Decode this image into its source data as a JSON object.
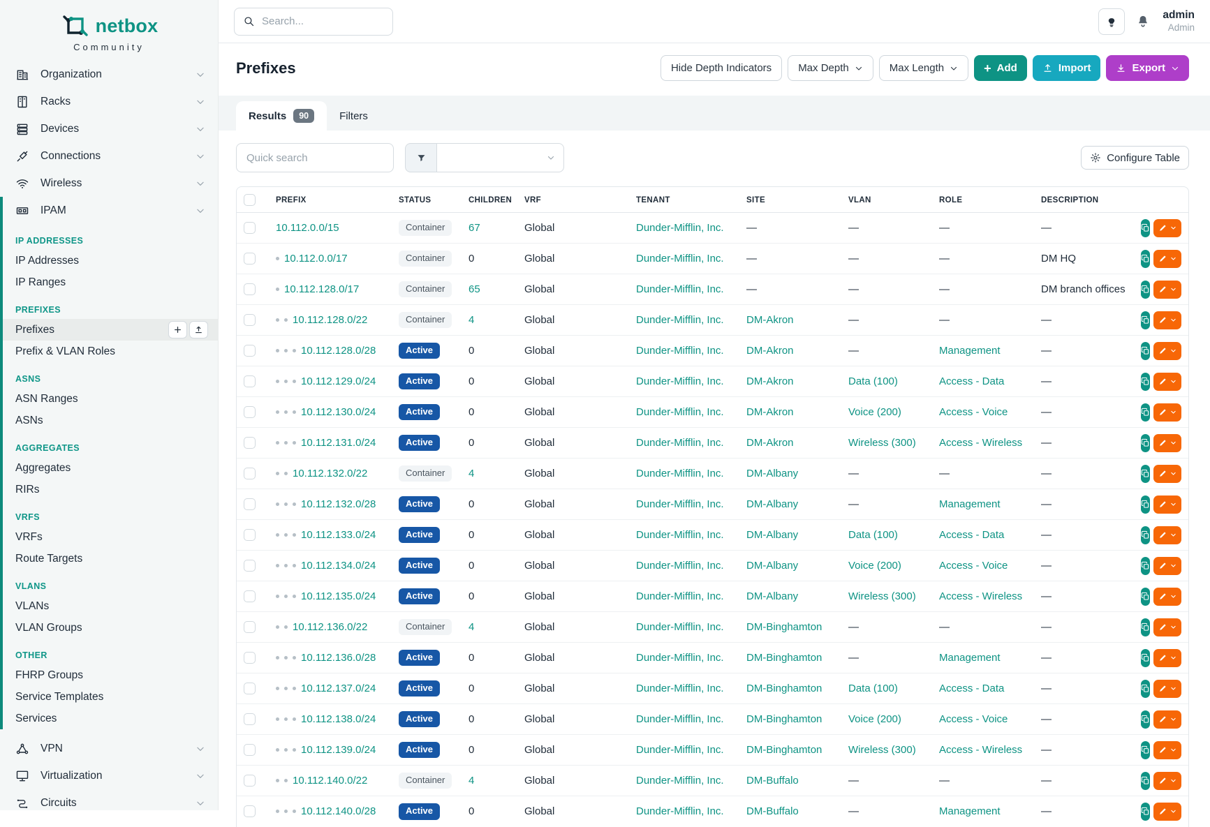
{
  "brand": {
    "name": "netbox",
    "subtitle": "Community"
  },
  "sidebar": {
    "top_items": [
      {
        "label": "Organization",
        "icon": "building-icon"
      },
      {
        "label": "Racks",
        "icon": "rack-icon"
      },
      {
        "label": "Devices",
        "icon": "server-icon"
      },
      {
        "label": "Connections",
        "icon": "plug-icon"
      },
      {
        "label": "Wireless",
        "icon": "wifi-icon"
      }
    ],
    "ipam": {
      "label": "IPAM",
      "icon": "grid-icon",
      "sections": [
        {
          "title": "IP ADDRESSES",
          "items": [
            {
              "label": "IP Addresses"
            },
            {
              "label": "IP Ranges"
            }
          ]
        },
        {
          "title": "PREFIXES",
          "items": [
            {
              "label": "Prefixes",
              "active": true,
              "actions": [
                "add",
                "import"
              ]
            },
            {
              "label": "Prefix & VLAN Roles"
            }
          ]
        },
        {
          "title": "ASNS",
          "items": [
            {
              "label": "ASN Ranges"
            },
            {
              "label": "ASNs"
            }
          ]
        },
        {
          "title": "AGGREGATES",
          "items": [
            {
              "label": "Aggregates"
            },
            {
              "label": "RIRs"
            }
          ]
        },
        {
          "title": "VRFS",
          "items": [
            {
              "label": "VRFs"
            },
            {
              "label": "Route Targets"
            }
          ]
        },
        {
          "title": "VLANS",
          "items": [
            {
              "label": "VLANs"
            },
            {
              "label": "VLAN Groups"
            }
          ]
        },
        {
          "title": "OTHER",
          "items": [
            {
              "label": "FHRP Groups"
            },
            {
              "label": "Service Templates"
            },
            {
              "label": "Services"
            }
          ]
        }
      ]
    },
    "bottom_items": [
      {
        "label": "VPN",
        "icon": "vpn-icon"
      },
      {
        "label": "Virtualization",
        "icon": "monitor-icon"
      },
      {
        "label": "Circuits",
        "icon": "circuit-icon"
      }
    ]
  },
  "topbar": {
    "search_placeholder": "Search...",
    "user": {
      "name": "admin",
      "role": "Admin"
    }
  },
  "page": {
    "title": "Prefixes",
    "actions": {
      "hide_depth": "Hide Depth Indicators",
      "max_depth": "Max Depth",
      "max_length": "Max Length",
      "add": "Add",
      "import": "Import",
      "export": "Export"
    },
    "tabs": [
      {
        "label": "Results",
        "badge": "90",
        "active": true
      },
      {
        "label": "Filters",
        "active": false
      }
    ],
    "toolbar": {
      "quick_search_placeholder": "Quick search",
      "configure_table": "Configure Table"
    }
  },
  "table": {
    "columns": [
      "PREFIX",
      "STATUS",
      "CHILDREN",
      "VRF",
      "TENANT",
      "SITE",
      "VLAN",
      "ROLE",
      "DESCRIPTION"
    ],
    "rows": [
      {
        "prefix": "10.112.0.0/15",
        "depth": 0,
        "status": "Container",
        "children": "67",
        "vrf": "Global",
        "tenant": "Dunder-Mifflin, Inc.",
        "site": "—",
        "vlan": "—",
        "role": "—",
        "description": "—"
      },
      {
        "prefix": "10.112.0.0/17",
        "depth": 1,
        "status": "Container",
        "children": "0",
        "vrf": "Global",
        "tenant": "Dunder-Mifflin, Inc.",
        "site": "—",
        "vlan": "—",
        "role": "—",
        "description": "DM HQ"
      },
      {
        "prefix": "10.112.128.0/17",
        "depth": 1,
        "status": "Container",
        "children": "65",
        "vrf": "Global",
        "tenant": "Dunder-Mifflin, Inc.",
        "site": "—",
        "vlan": "—",
        "role": "—",
        "description": "DM branch offices"
      },
      {
        "prefix": "10.112.128.0/22",
        "depth": 2,
        "status": "Container",
        "children": "4",
        "vrf": "Global",
        "tenant": "Dunder-Mifflin, Inc.",
        "site": "DM-Akron",
        "vlan": "—",
        "role": "—",
        "description": "—"
      },
      {
        "prefix": "10.112.128.0/28",
        "depth": 3,
        "status": "Active",
        "children": "0",
        "vrf": "Global",
        "tenant": "Dunder-Mifflin, Inc.",
        "site": "DM-Akron",
        "vlan": "—",
        "role": "Management",
        "description": "—"
      },
      {
        "prefix": "10.112.129.0/24",
        "depth": 3,
        "status": "Active",
        "children": "0",
        "vrf": "Global",
        "tenant": "Dunder-Mifflin, Inc.",
        "site": "DM-Akron",
        "vlan": "Data (100)",
        "role": "Access - Data",
        "description": "—"
      },
      {
        "prefix": "10.112.130.0/24",
        "depth": 3,
        "status": "Active",
        "children": "0",
        "vrf": "Global",
        "tenant": "Dunder-Mifflin, Inc.",
        "site": "DM-Akron",
        "vlan": "Voice (200)",
        "role": "Access - Voice",
        "description": "—"
      },
      {
        "prefix": "10.112.131.0/24",
        "depth": 3,
        "status": "Active",
        "children": "0",
        "vrf": "Global",
        "tenant": "Dunder-Mifflin, Inc.",
        "site": "DM-Akron",
        "vlan": "Wireless (300)",
        "role": "Access - Wireless",
        "description": "—"
      },
      {
        "prefix": "10.112.132.0/22",
        "depth": 2,
        "status": "Container",
        "children": "4",
        "vrf": "Global",
        "tenant": "Dunder-Mifflin, Inc.",
        "site": "DM-Albany",
        "vlan": "—",
        "role": "—",
        "description": "—"
      },
      {
        "prefix": "10.112.132.0/28",
        "depth": 3,
        "status": "Active",
        "children": "0",
        "vrf": "Global",
        "tenant": "Dunder-Mifflin, Inc.",
        "site": "DM-Albany",
        "vlan": "—",
        "role": "Management",
        "description": "—"
      },
      {
        "prefix": "10.112.133.0/24",
        "depth": 3,
        "status": "Active",
        "children": "0",
        "vrf": "Global",
        "tenant": "Dunder-Mifflin, Inc.",
        "site": "DM-Albany",
        "vlan": "Data (100)",
        "role": "Access - Data",
        "description": "—"
      },
      {
        "prefix": "10.112.134.0/24",
        "depth": 3,
        "status": "Active",
        "children": "0",
        "vrf": "Global",
        "tenant": "Dunder-Mifflin, Inc.",
        "site": "DM-Albany",
        "vlan": "Voice (200)",
        "role": "Access - Voice",
        "description": "—"
      },
      {
        "prefix": "10.112.135.0/24",
        "depth": 3,
        "status": "Active",
        "children": "0",
        "vrf": "Global",
        "tenant": "Dunder-Mifflin, Inc.",
        "site": "DM-Albany",
        "vlan": "Wireless (300)",
        "role": "Access - Wireless",
        "description": "—"
      },
      {
        "prefix": "10.112.136.0/22",
        "depth": 2,
        "status": "Container",
        "children": "4",
        "vrf": "Global",
        "tenant": "Dunder-Mifflin, Inc.",
        "site": "DM-Binghamton",
        "vlan": "—",
        "role": "—",
        "description": "—"
      },
      {
        "prefix": "10.112.136.0/28",
        "depth": 3,
        "status": "Active",
        "children": "0",
        "vrf": "Global",
        "tenant": "Dunder-Mifflin, Inc.",
        "site": "DM-Binghamton",
        "vlan": "—",
        "role": "Management",
        "description": "—"
      },
      {
        "prefix": "10.112.137.0/24",
        "depth": 3,
        "status": "Active",
        "children": "0",
        "vrf": "Global",
        "tenant": "Dunder-Mifflin, Inc.",
        "site": "DM-Binghamton",
        "vlan": "Data (100)",
        "role": "Access - Data",
        "description": "—"
      },
      {
        "prefix": "10.112.138.0/24",
        "depth": 3,
        "status": "Active",
        "children": "0",
        "vrf": "Global",
        "tenant": "Dunder-Mifflin, Inc.",
        "site": "DM-Binghamton",
        "vlan": "Voice (200)",
        "role": "Access - Voice",
        "description": "—"
      },
      {
        "prefix": "10.112.139.0/24",
        "depth": 3,
        "status": "Active",
        "children": "0",
        "vrf": "Global",
        "tenant": "Dunder-Mifflin, Inc.",
        "site": "DM-Binghamton",
        "vlan": "Wireless (300)",
        "role": "Access - Wireless",
        "description": "—"
      },
      {
        "prefix": "10.112.140.0/22",
        "depth": 2,
        "status": "Container",
        "children": "4",
        "vrf": "Global",
        "tenant": "Dunder-Mifflin, Inc.",
        "site": "DM-Buffalo",
        "vlan": "—",
        "role": "—",
        "description": "—"
      },
      {
        "prefix": "10.112.140.0/28",
        "depth": 3,
        "status": "Active",
        "children": "0",
        "vrf": "Global",
        "tenant": "Dunder-Mifflin, Inc.",
        "site": "DM-Buffalo",
        "vlan": "—",
        "role": "Management",
        "description": "—"
      }
    ]
  },
  "colors": {
    "teal_accent": "#0E9384",
    "add_button": "#0E9384",
    "import_button": "#17A8BF",
    "export_button": "#AE3EC9",
    "edit_button": "#F76707",
    "active_badge": "#1757A6",
    "container_badge_bg": "#F1F4F6",
    "sidebar_bg": "#F4F7F7",
    "tab_badge_bg": "#6B7681"
  }
}
